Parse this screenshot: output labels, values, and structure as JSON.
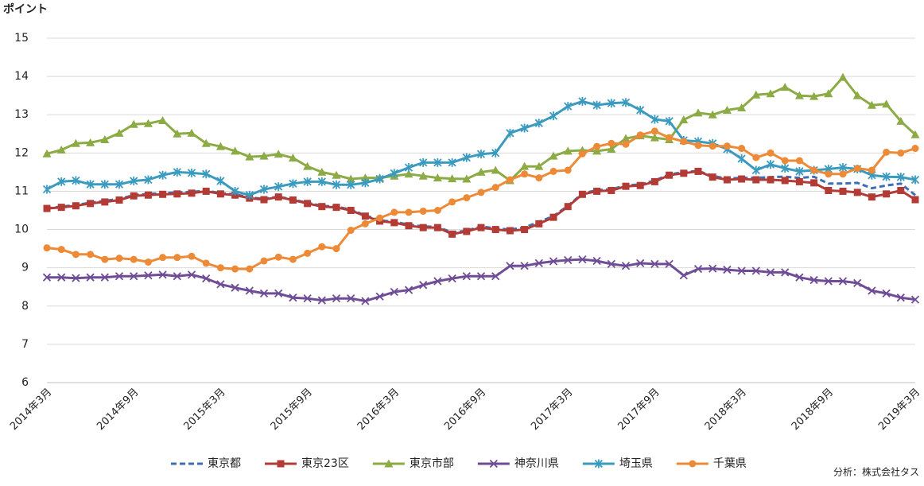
{
  "chart_data": {
    "type": "line",
    "y_label": "ポイント",
    "source": "分析：株式会社タス",
    "categories": [
      "2014年3月",
      null,
      null,
      null,
      null,
      null,
      "2014年9月",
      null,
      null,
      null,
      null,
      null,
      "2015年3月",
      null,
      null,
      null,
      null,
      null,
      "2015年9月",
      null,
      null,
      null,
      null,
      null,
      "2016年3月",
      null,
      null,
      null,
      null,
      null,
      "2016年9月",
      null,
      null,
      null,
      null,
      null,
      "2017年3月",
      null,
      null,
      null,
      null,
      null,
      "2017年9月",
      null,
      null,
      null,
      null,
      null,
      "2018年3月",
      null,
      null,
      null,
      null,
      null,
      "2018年9月",
      null,
      null,
      null,
      null,
      null,
      "2019年3月"
    ],
    "ylim": [
      6,
      15
    ],
    "yticks": [
      6,
      7,
      8,
      9,
      10,
      11,
      12,
      13,
      14,
      15
    ],
    "grid": true,
    "legend": "bottom",
    "series": [
      {
        "name": "東京都",
        "color": "#3e6fb5",
        "dashed": true,
        "marker": "none",
        "values": [
          10.55,
          10.6,
          10.64,
          10.7,
          10.75,
          10.8,
          10.9,
          10.93,
          10.95,
          10.97,
          10.98,
          11.02,
          10.95,
          10.92,
          10.84,
          10.8,
          10.86,
          10.78,
          10.7,
          10.62,
          10.6,
          10.52,
          10.37,
          10.24,
          10.2,
          10.13,
          10.08,
          10.07,
          9.92,
          9.97,
          10.08,
          10.03,
          10.0,
          10.05,
          10.2,
          10.35,
          10.62,
          10.94,
          11.03,
          11.05,
          11.15,
          11.18,
          11.28,
          11.44,
          11.5,
          11.53,
          11.4,
          11.33,
          11.35,
          11.35,
          11.37,
          11.38,
          11.35,
          11.38,
          11.2,
          11.2,
          11.22,
          11.08,
          11.15,
          11.2,
          10.9
        ]
      },
      {
        "name": "東京23区",
        "color": "#b33b36",
        "marker": "square",
        "values": [
          10.55,
          10.58,
          10.62,
          10.68,
          10.72,
          10.77,
          10.88,
          10.9,
          10.92,
          10.93,
          10.95,
          11.0,
          10.93,
          10.9,
          10.82,
          10.78,
          10.85,
          10.77,
          10.68,
          10.6,
          10.58,
          10.5,
          10.35,
          10.22,
          10.18,
          10.1,
          10.05,
          10.05,
          9.88,
          9.95,
          10.05,
          10.0,
          9.97,
          10.0,
          10.15,
          10.32,
          10.6,
          10.92,
          11.0,
          11.02,
          11.13,
          11.15,
          11.25,
          11.42,
          11.47,
          11.52,
          11.37,
          11.3,
          11.32,
          11.3,
          11.3,
          11.28,
          11.25,
          11.22,
          11.02,
          11.0,
          10.97,
          10.85,
          10.93,
          11.02,
          10.78
        ]
      },
      {
        "name": "東京市部",
        "color": "#8cab45",
        "marker": "triangle",
        "values": [
          11.98,
          12.08,
          12.25,
          12.27,
          12.35,
          12.52,
          12.75,
          12.77,
          12.85,
          12.5,
          12.52,
          12.25,
          12.17,
          12.05,
          11.9,
          11.92,
          11.97,
          11.87,
          11.65,
          11.5,
          11.42,
          11.32,
          11.35,
          11.35,
          11.4,
          11.45,
          11.4,
          11.35,
          11.33,
          11.32,
          11.5,
          11.55,
          11.28,
          11.65,
          11.65,
          11.92,
          12.05,
          12.07,
          12.05,
          12.1,
          12.38,
          12.45,
          12.4,
          12.35,
          12.87,
          13.05,
          13.0,
          13.12,
          13.18,
          13.52,
          13.55,
          13.72,
          13.5,
          13.48,
          13.55,
          13.98,
          13.5,
          13.25,
          13.28,
          12.83,
          12.48
        ]
      },
      {
        "name": "神奈川県",
        "color": "#6f4d96",
        "marker": "x",
        "values": [
          8.75,
          8.75,
          8.73,
          8.75,
          8.75,
          8.78,
          8.78,
          8.8,
          8.82,
          8.78,
          8.82,
          8.72,
          8.57,
          8.48,
          8.4,
          8.33,
          8.33,
          8.22,
          8.2,
          8.15,
          8.2,
          8.2,
          8.13,
          8.25,
          8.37,
          8.42,
          8.55,
          8.65,
          8.72,
          8.78,
          8.78,
          8.78,
          9.05,
          9.05,
          9.12,
          9.17,
          9.2,
          9.22,
          9.18,
          9.1,
          9.05,
          9.12,
          9.1,
          9.1,
          8.8,
          8.97,
          8.98,
          8.95,
          8.92,
          8.92,
          8.88,
          8.88,
          8.75,
          8.68,
          8.65,
          8.65,
          8.6,
          8.4,
          8.33,
          8.22,
          8.17
        ]
      },
      {
        "name": "埼玉県",
        "color": "#3a9bbf",
        "marker": "asterisk",
        "values": [
          11.05,
          11.25,
          11.28,
          11.18,
          11.18,
          11.18,
          11.27,
          11.3,
          11.42,
          11.5,
          11.48,
          11.45,
          11.27,
          11.0,
          10.9,
          11.05,
          11.12,
          11.2,
          11.25,
          11.25,
          11.17,
          11.17,
          11.22,
          11.32,
          11.47,
          11.62,
          11.75,
          11.75,
          11.75,
          11.88,
          11.97,
          12.0,
          12.52,
          12.65,
          12.78,
          12.97,
          13.22,
          13.35,
          13.25,
          13.3,
          13.32,
          13.12,
          12.88,
          12.83,
          12.33,
          12.3,
          12.25,
          12.1,
          11.85,
          11.55,
          11.7,
          11.6,
          11.52,
          11.55,
          11.58,
          11.62,
          11.58,
          11.42,
          11.38,
          11.37,
          11.3
        ]
      },
      {
        "name": "千葉県",
        "color": "#ec8a37",
        "marker": "circle",
        "values": [
          9.52,
          9.48,
          9.35,
          9.35,
          9.22,
          9.25,
          9.22,
          9.15,
          9.27,
          9.27,
          9.3,
          9.12,
          9.0,
          8.97,
          8.97,
          9.18,
          9.28,
          9.22,
          9.38,
          9.55,
          9.5,
          9.98,
          10.15,
          10.3,
          10.45,
          10.45,
          10.48,
          10.5,
          10.72,
          10.83,
          10.97,
          11.1,
          11.3,
          11.45,
          11.35,
          11.52,
          11.55,
          11.98,
          12.17,
          12.25,
          12.23,
          12.47,
          12.57,
          12.4,
          12.3,
          12.2,
          12.18,
          12.18,
          12.12,
          11.88,
          12.0,
          11.8,
          11.8,
          11.55,
          11.45,
          11.45,
          11.6,
          11.55,
          12.02,
          12.0,
          12.12
        ]
      }
    ]
  }
}
